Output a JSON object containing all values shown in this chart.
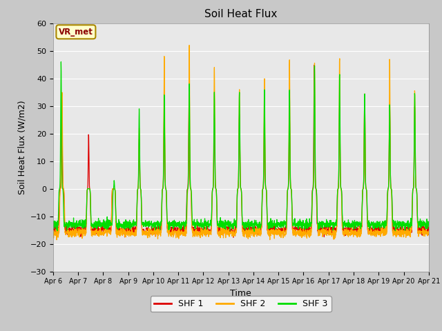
{
  "title": "Soil Heat Flux",
  "xlabel": "Time",
  "ylabel": "Soil Heat Flux (W/m2)",
  "ylim": [
    -30,
    60
  ],
  "yticks": [
    -30,
    -20,
    -10,
    0,
    10,
    20,
    30,
    40,
    50,
    60
  ],
  "fig_bg_color": "#c8c8c8",
  "plot_bg_color": "#e8e8e8",
  "shf1_color": "#dd0000",
  "shf2_color": "#ffaa00",
  "shf3_color": "#00dd00",
  "legend_label1": "SHF 1",
  "legend_label2": "SHF 2",
  "legend_label3": "SHF 3",
  "annotation_text": "VR_met",
  "n_days": 15,
  "start_day": 6,
  "points_per_day": 144
}
